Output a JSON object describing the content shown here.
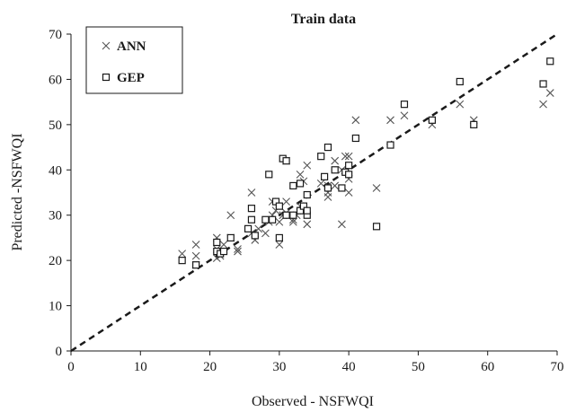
{
  "chart_data": {
    "type": "scatter",
    "title": "Train data",
    "xlabel": "Observed - NSFWQI",
    "ylabel": "Predicted -NSFWQI",
    "xlim": [
      0,
      70
    ],
    "ylim": [
      0,
      70
    ],
    "xticks": [
      0,
      10,
      20,
      30,
      40,
      50,
      60,
      70
    ],
    "yticks": [
      0,
      10,
      20,
      30,
      40,
      50,
      60,
      70
    ],
    "grid": false,
    "legend_position": "top-left",
    "reference_line": {
      "style": "dashed",
      "from": [
        0,
        0
      ],
      "to": [
        70,
        70
      ],
      "color": "#1a1a1a"
    },
    "series": [
      {
        "name": "ANN",
        "marker": "x",
        "color": "#555555",
        "points": [
          [
            16,
            21.5
          ],
          [
            18,
            19
          ],
          [
            18,
            21
          ],
          [
            18,
            23.5
          ],
          [
            21,
            20.5
          ],
          [
            21,
            22.5
          ],
          [
            21,
            25
          ],
          [
            21.5,
            21
          ],
          [
            22,
            23.5
          ],
          [
            23,
            25
          ],
          [
            23,
            30
          ],
          [
            24,
            22
          ],
          [
            24,
            22.5
          ],
          [
            26,
            35
          ],
          [
            26,
            26
          ],
          [
            26.5,
            24.5
          ],
          [
            27,
            27
          ],
          [
            28,
            26
          ],
          [
            28.5,
            28.5
          ],
          [
            29,
            33
          ],
          [
            29,
            30
          ],
          [
            29.5,
            31
          ],
          [
            30,
            23.5
          ],
          [
            30,
            28.5
          ],
          [
            30.5,
            30
          ],
          [
            31,
            30.5
          ],
          [
            31,
            33
          ],
          [
            31,
            42
          ],
          [
            32,
            29
          ],
          [
            32,
            28.5
          ],
          [
            32.5,
            30
          ],
          [
            33,
            39
          ],
          [
            33,
            32
          ],
          [
            33.5,
            31
          ],
          [
            33.5,
            37.5
          ],
          [
            34,
            28
          ],
          [
            34,
            41
          ],
          [
            36,
            37
          ],
          [
            37,
            34
          ],
          [
            37,
            36.5
          ],
          [
            37,
            35
          ],
          [
            38,
            42
          ],
          [
            38,
            36.5
          ],
          [
            39,
            40
          ],
          [
            39,
            28
          ],
          [
            40,
            35
          ],
          [
            40,
            43
          ],
          [
            40,
            38
          ],
          [
            39.5,
            43
          ],
          [
            41,
            51
          ],
          [
            44,
            36
          ],
          [
            46,
            51
          ],
          [
            48,
            52
          ],
          [
            52,
            50
          ],
          [
            56,
            54.5
          ],
          [
            58,
            51
          ],
          [
            68,
            54.5
          ],
          [
            69,
            57
          ]
        ]
      },
      {
        "name": "GEP",
        "marker": "square",
        "color": "#1a1a1a",
        "points": [
          [
            16,
            20
          ],
          [
            18,
            19
          ],
          [
            21,
            22
          ],
          [
            21,
            24
          ],
          [
            21.5,
            21.5
          ],
          [
            22,
            22
          ],
          [
            23,
            25
          ],
          [
            25.5,
            27
          ],
          [
            26,
            29
          ],
          [
            26,
            31.5
          ],
          [
            26.5,
            25.5
          ],
          [
            28,
            29
          ],
          [
            28.5,
            39
          ],
          [
            29,
            29
          ],
          [
            29.5,
            33
          ],
          [
            30,
            32
          ],
          [
            30,
            25
          ],
          [
            30.5,
            42.5
          ],
          [
            31,
            42
          ],
          [
            31,
            30
          ],
          [
            32,
            36.5
          ],
          [
            32,
            30
          ],
          [
            33,
            37
          ],
          [
            33,
            31
          ],
          [
            33.5,
            32
          ],
          [
            34,
            34.5
          ],
          [
            34,
            30
          ],
          [
            34,
            31
          ],
          [
            36,
            43
          ],
          [
            36.5,
            38.5
          ],
          [
            37,
            36
          ],
          [
            37,
            45
          ],
          [
            38,
            40
          ],
          [
            39,
            36
          ],
          [
            39.5,
            39.5
          ],
          [
            40,
            41
          ],
          [
            40,
            39
          ],
          [
            41,
            47
          ],
          [
            44,
            27.5
          ],
          [
            46,
            45.5
          ],
          [
            48,
            54.5
          ],
          [
            52,
            51
          ],
          [
            56,
            59.5
          ],
          [
            58,
            50
          ],
          [
            68,
            59
          ],
          [
            69,
            64
          ]
        ]
      }
    ]
  }
}
